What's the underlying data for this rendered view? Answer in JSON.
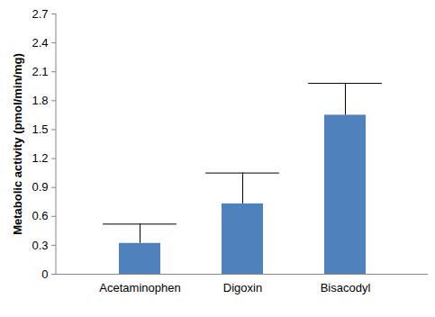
{
  "chart_data": {
    "type": "bar",
    "categories": [
      "Acetaminophen",
      "Digoxin",
      "Bisacodyl"
    ],
    "values": [
      0.32,
      0.73,
      1.65
    ],
    "errors": [
      0.2,
      0.32,
      0.33
    ],
    "color": "#4f81bd",
    "y_label": "Metabolic activity (pmol/min/mg)",
    "ylim": [
      0,
      2.7
    ],
    "yticks": [
      0,
      0.3,
      0.6,
      0.9,
      1.2,
      1.5,
      1.8,
      2.1,
      2.4,
      2.7
    ],
    "grid": false
  }
}
